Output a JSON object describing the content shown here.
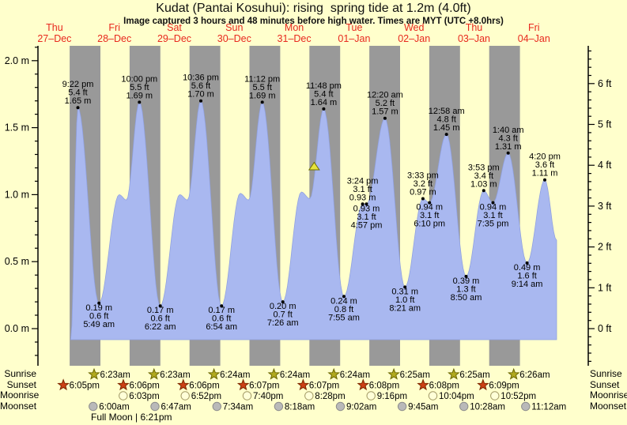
{
  "title": "Kudat (Pantai Kosuhui): rising  spring tide at 1.2m (4.0ft)",
  "subtitle": "Image captured 3 hours and 48 minutes before high water. Times are MYT (UTC +8.0hrs)",
  "days": [
    {
      "name": "Thu",
      "date": "27–Dec"
    },
    {
      "name": "Fri",
      "date": "28–Dec"
    },
    {
      "name": "Sat",
      "date": "29–Dec"
    },
    {
      "name": "Sun",
      "date": "30–Dec"
    },
    {
      "name": "Mon",
      "date": "31–Dec"
    },
    {
      "name": "Tue",
      "date": "01–Jan"
    },
    {
      "name": "Wed",
      "date": "02–Jan"
    },
    {
      "name": "Thu",
      "date": "03–Jan"
    },
    {
      "name": "Fri",
      "date": "04–Jan"
    }
  ],
  "axes": {
    "left_unit": "m",
    "right_unit": "ft",
    "left_ticks": [
      {
        "label": "0.0 m",
        "m": 0
      },
      {
        "label": "0.5 m",
        "m": 0.5
      },
      {
        "label": "1.0 m",
        "m": 1
      },
      {
        "label": "1.5 m",
        "m": 1.5
      },
      {
        "label": "2.0 m",
        "m": 2
      }
    ],
    "right_ticks": [
      {
        "label": "0 ft",
        "ft": 0
      },
      {
        "label": "1 ft",
        "ft": 1
      },
      {
        "label": "2 ft",
        "ft": 2
      },
      {
        "label": "3 ft",
        "ft": 3
      },
      {
        "label": "4 ft",
        "ft": 4
      },
      {
        "label": "5 ft",
        "ft": 5
      },
      {
        "label": "6 ft",
        "ft": 6
      }
    ]
  },
  "chart_data": {
    "type": "area",
    "title": "Kudat (Pantai Kosuhui) tide height, 27-Dec to 04-Jan",
    "ylabel_left": "m",
    "ylabel_right": "ft",
    "ylim_m": [
      -0.28,
      2.11
    ],
    "x_range_days": [
      "27–Dec",
      "04–Jan"
    ],
    "tide_events": [
      {
        "kind": "high",
        "t": 0.89028,
        "m": 1.65,
        "lines": [
          "9:22 pm",
          "5.4 ft",
          "1.65 m"
        ]
      },
      {
        "kind": "high",
        "t": 1.91667,
        "m": 1.69,
        "lines": [
          "10:00 pm",
          "5.5 ft",
          "1.69 m"
        ]
      },
      {
        "kind": "high",
        "t": 2.94167,
        "m": 1.7,
        "lines": [
          "10:36 pm",
          "5.6 ft",
          "1.70 m"
        ]
      },
      {
        "kind": "high",
        "t": 3.96667,
        "m": 1.69,
        "lines": [
          "11:12 pm",
          "5.5 ft",
          "1.69 m"
        ]
      },
      {
        "kind": "high",
        "t": 4.99167,
        "m": 1.64,
        "lines": [
          "11:48 pm",
          "5.4 ft",
          "1.64 m"
        ]
      },
      {
        "kind": "high",
        "t": 6.01389,
        "m": 1.57,
        "lines": [
          "12:20 am",
          "5.2 ft",
          "1.57 m"
        ]
      },
      {
        "kind": "high",
        "t": 7.04028,
        "m": 1.45,
        "lines": [
          "12:58 am",
          "4.8 ft",
          "1.45 m"
        ]
      },
      {
        "kind": "high",
        "t": 8.06944,
        "m": 1.31,
        "lines": [
          "1:40 am",
          "4.3 ft",
          "1.31 m"
        ]
      },
      {
        "kind": "high",
        "t": 8.68056,
        "m": 1.11,
        "lines": [
          "4:20 pm",
          "3.6 ft",
          "1.11 m"
        ]
      },
      {
        "kind": "low",
        "t": 1.24236,
        "m": 0.19,
        "lines": [
          "0.19 m",
          "0.6 ft",
          "5:49 am"
        ]
      },
      {
        "kind": "low",
        "t": 2.26528,
        "m": 0.17,
        "lines": [
          "0.17 m",
          "0.6 ft",
          "6:22 am"
        ]
      },
      {
        "kind": "low",
        "t": 3.2875,
        "m": 0.17,
        "lines": [
          "0.17 m",
          "0.6 ft",
          "6:54 am"
        ]
      },
      {
        "kind": "low",
        "t": 4.30972,
        "m": 0.2,
        "lines": [
          "0.20 m",
          "0.7 ft",
          "7:26 am"
        ]
      },
      {
        "kind": "low",
        "t": 5.32986,
        "m": 0.24,
        "lines": [
          "0.24 m",
          "0.8 ft",
          "7:55 am"
        ]
      },
      {
        "kind": "low",
        "t": 6.34792,
        "m": 0.31,
        "lines": [
          "0.31 m",
          "1.0 ft",
          "8:21 am"
        ]
      },
      {
        "kind": "low",
        "t": 7.36806,
        "m": 0.39,
        "lines": [
          "0.39 m",
          "1.3 ft",
          "8:50 am"
        ]
      },
      {
        "kind": "low",
        "t": 8.38472,
        "m": 0.49,
        "lines": [
          "0.49 m",
          "1.6 ft",
          "9:14 am"
        ]
      },
      {
        "kind": "high",
        "t": 5.64167,
        "m": 0.93,
        "lines": [
          "3:24 pm",
          "3.1 ft",
          "0.93 m"
        ]
      },
      {
        "kind": "high",
        "t": 6.64792,
        "m": 0.97,
        "lines": [
          "3:33 pm",
          "3.2 ft",
          "0.97 m"
        ]
      },
      {
        "kind": "high",
        "t": 7.66181,
        "m": 1.03,
        "lines": [
          "3:53 pm",
          "3.4 ft",
          "1.03 m"
        ]
      },
      {
        "kind": "low",
        "t": 5.70625,
        "m": 0.93,
        "lines": [
          "0.93 m",
          "3.1 ft",
          "4:57 pm"
        ]
      },
      {
        "kind": "low",
        "t": 6.75694,
        "m": 0.94,
        "lines": [
          "0.94 m",
          "3.1 ft",
          "6:10 pm"
        ]
      },
      {
        "kind": "low",
        "t": 7.81597,
        "m": 0.94,
        "lines": [
          "0.94 m",
          "3.1 ft",
          "7:35 pm"
        ]
      }
    ],
    "curve_shape_anchors": [
      [
        0.77,
        -0.09
      ],
      [
        1.58,
        1.0
      ],
      [
        1.7,
        0.96
      ],
      [
        2.59,
        1.0
      ],
      [
        2.72,
        0.96
      ],
      [
        3.6,
        1.01
      ],
      [
        3.74,
        0.96
      ],
      [
        4.62,
        1.02
      ],
      [
        4.76,
        0.97
      ],
      [
        8.878,
        0.66
      ]
    ],
    "now_marker": {
      "t": 4.8333,
      "m": 1.2
    }
  },
  "almanac": {
    "rows": [
      {
        "label": "Sunrise",
        "icon": "sunrise-star-icon",
        "entries": [
          {
            "day": 1,
            "time": "6:23am"
          },
          {
            "day": 2,
            "time": "6:23am"
          },
          {
            "day": 3,
            "time": "6:24am"
          },
          {
            "day": 4,
            "time": "6:24am"
          },
          {
            "day": 5,
            "time": "6:24am"
          },
          {
            "day": 6,
            "time": "6:25am"
          },
          {
            "day": 7,
            "time": "6:25am"
          },
          {
            "day": 8,
            "time": "6:26am"
          }
        ]
      },
      {
        "label": "Sunset",
        "icon": "sunset-star-icon",
        "entries": [
          {
            "day": 0,
            "time": "6:05pm"
          },
          {
            "day": 1,
            "time": "6:06pm"
          },
          {
            "day": 2,
            "time": "6:06pm"
          },
          {
            "day": 3,
            "time": "6:07pm"
          },
          {
            "day": 4,
            "time": "6:07pm"
          },
          {
            "day": 5,
            "time": "6:08pm"
          },
          {
            "day": 6,
            "time": "6:08pm"
          },
          {
            "day": 7,
            "time": "6:09pm"
          }
        ]
      },
      {
        "label": "Moonrise",
        "icon": "moonrise-icon",
        "entries": [
          {
            "day": 1,
            "time": "6:03pm"
          },
          {
            "day": 2,
            "time": "6:52pm"
          },
          {
            "day": 3,
            "time": "7:40pm"
          },
          {
            "day": 4,
            "time": "8:28pm"
          },
          {
            "day": 5,
            "time": "9:16pm"
          },
          {
            "day": 6,
            "time": "10:04pm"
          },
          {
            "day": 7,
            "time": "10:52pm"
          }
        ]
      },
      {
        "label": "Moonset",
        "icon": "moonset-icon",
        "entries": [
          {
            "day": 1,
            "time": "6:00am"
          },
          {
            "day": 2,
            "time": "6:47am"
          },
          {
            "day": 3,
            "time": "7:34am"
          },
          {
            "day": 4,
            "time": "8:18am"
          },
          {
            "day": 5,
            "time": "9:02am"
          },
          {
            "day": 6,
            "time": "9:45am"
          },
          {
            "day": 7,
            "time": "10:28am"
          },
          {
            "day": 8,
            "time": "11:12am"
          }
        ]
      }
    ],
    "footnote": "Full Moon | 6:21pm"
  },
  "colors": {
    "background": "#ffffcc",
    "night_band": "#999999",
    "tide_fill": "#a9b8f0",
    "tide_edge": "#8fa0e0",
    "day_label": "#e8281e",
    "axis": "#000000",
    "sunrise_star": "#b1a91e",
    "sunset_star": "#cc4015",
    "moonrise_moon": "#ffffd8",
    "moonset_moon": "#b9b9b9",
    "marker_fill": "#e6e33c",
    "marker_edge": "#6e6e00"
  }
}
